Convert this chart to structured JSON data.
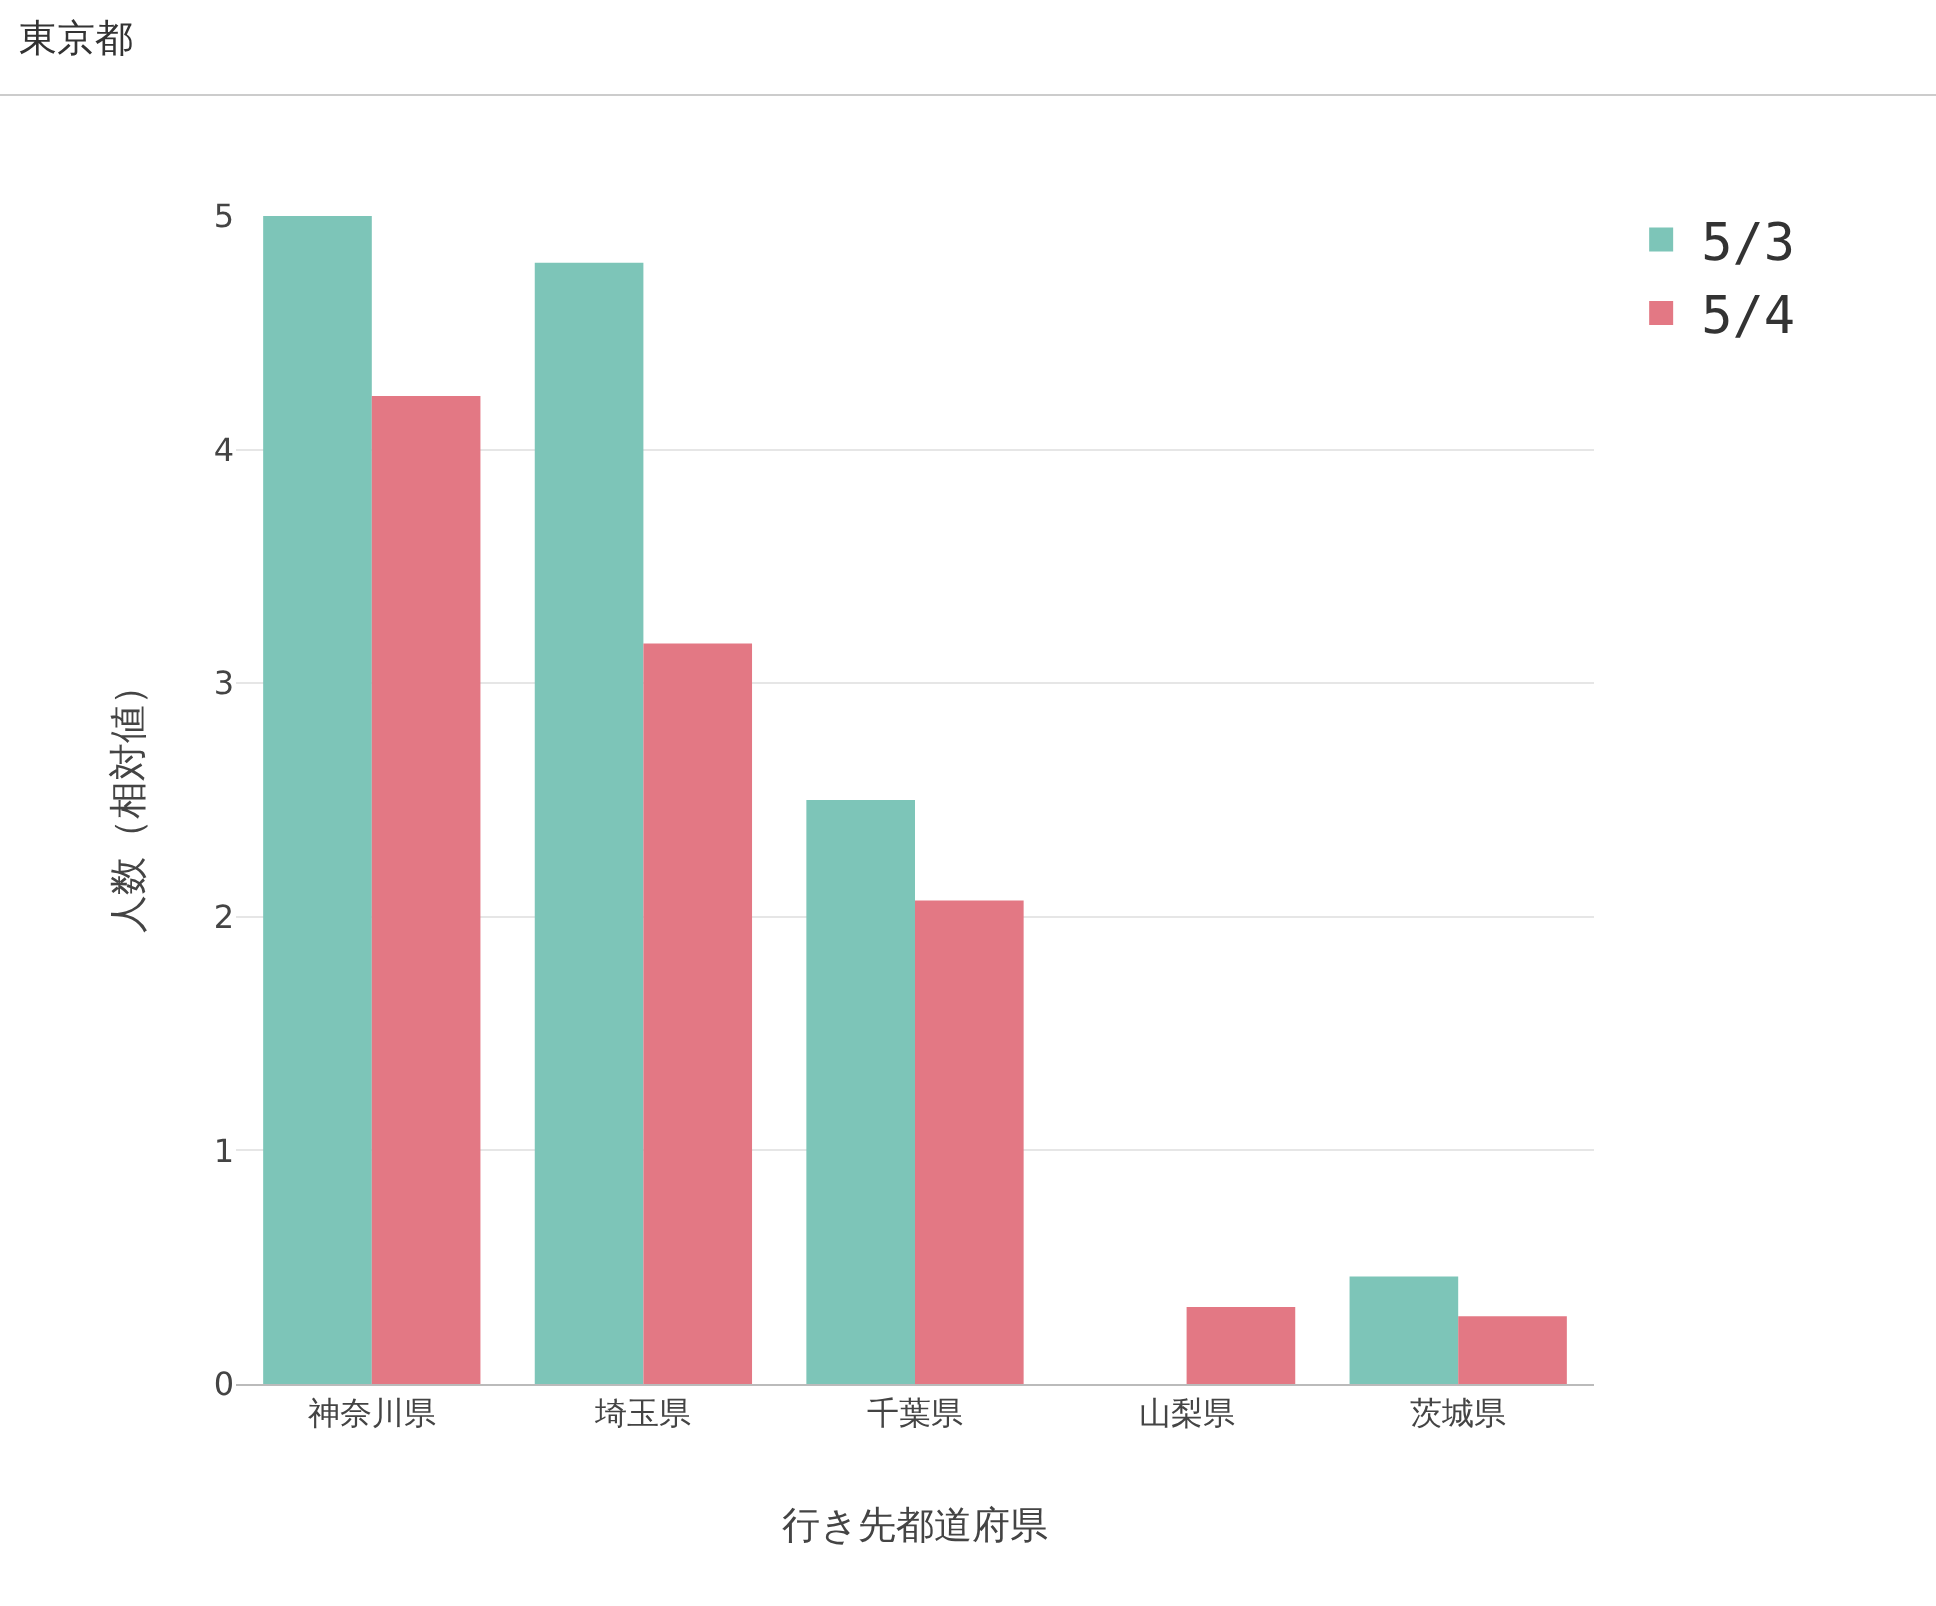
{
  "chart_data": {
    "type": "bar",
    "title": "東京都",
    "xlabel": "行き先都道府県",
    "ylabel": "人数（相対値）",
    "categories": [
      "神奈川県",
      "埼玉県",
      "千葉県",
      "山梨県",
      "茨城県"
    ],
    "series": [
      {
        "name": "5/3",
        "color": "#7dc5b8",
        "values": [
          5.0,
          4.8,
          2.5,
          0,
          0.46
        ]
      },
      {
        "name": "5/4",
        "color": "#e37884",
        "values": [
          4.23,
          3.17,
          2.07,
          0.33,
          0.29
        ]
      }
    ],
    "ylim": [
      0,
      5
    ],
    "yticks": [
      0,
      1,
      2,
      3,
      4,
      5
    ],
    "grid": "y",
    "legend": "top right"
  }
}
